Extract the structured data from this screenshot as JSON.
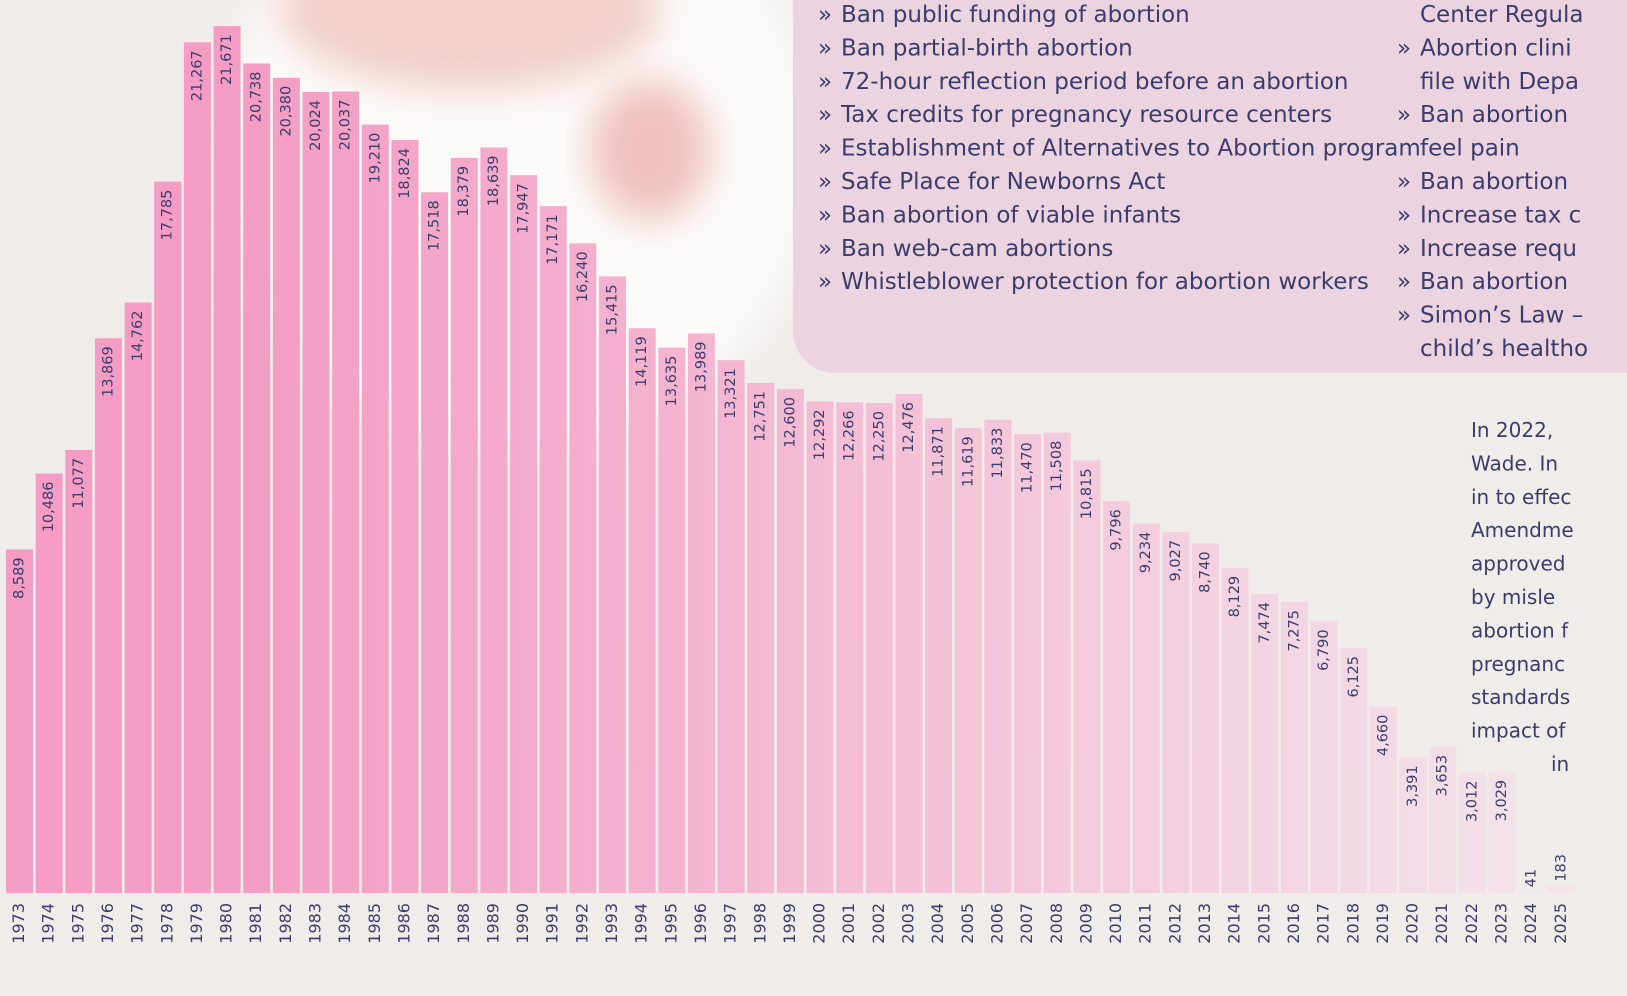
{
  "chart_data": {
    "type": "bar",
    "categories": [
      "1973",
      "1974",
      "1975",
      "1976",
      "1977",
      "1978",
      "1979",
      "1980",
      "1981",
      "1982",
      "1983",
      "1984",
      "1985",
      "1986",
      "1987",
      "1988",
      "1989",
      "1990",
      "1991",
      "1992",
      "1993",
      "1994",
      "1995",
      "1996",
      "1997",
      "1998",
      "1999",
      "2000",
      "2001",
      "2002",
      "2003",
      "2004",
      "2005",
      "2006",
      "2007",
      "2008",
      "2009",
      "2010",
      "2011",
      "2012",
      "2013",
      "2014",
      "2015",
      "2016",
      "2017",
      "2018",
      "2019",
      "2020",
      "2021",
      "2022",
      "2023",
      "2024",
      "2025"
    ],
    "values": [
      8589,
      10486,
      11077,
      13869,
      14762,
      17785,
      21267,
      21671,
      20738,
      20380,
      20024,
      20037,
      19210,
      18824,
      17518,
      18379,
      18639,
      17947,
      17171,
      16240,
      15415,
      14119,
      13635,
      13989,
      13321,
      12751,
      12600,
      12292,
      12266,
      12250,
      12476,
      11871,
      11619,
      11833,
      11470,
      11508,
      10815,
      9796,
      9234,
      9027,
      8740,
      8129,
      7474,
      7275,
      6790,
      6125,
      4660,
      3391,
      3653,
      3012,
      3029,
      41,
      183
    ],
    "value_labels": [
      "8,589",
      "10,486",
      "11,077",
      "13,869",
      "14,762",
      "17,785",
      "21,267",
      "21,671",
      "20,738",
      "20,380",
      "20,024",
      "20,037",
      "19,210",
      "18,824",
      "17,518",
      "18,379",
      "18,639",
      "17,947",
      "17,171",
      "16,240",
      "15,415",
      "14,119",
      "13,635",
      "13,989",
      "13,321",
      "12,751",
      "12,600",
      "12,292",
      "12,266",
      "12,250",
      "12,476",
      "11,871",
      "11,619",
      "11,833",
      "11,470",
      "11,508",
      "10,815",
      "9,796",
      "9,234",
      "9,027",
      "8,740",
      "8,129",
      "7,474",
      "7,275",
      "6,790",
      "6,125",
      "4,660",
      "3,391",
      "3,653",
      "3,012",
      "3,029",
      "41",
      "183"
    ],
    "color": "#f49cc3",
    "ylim": [
      0,
      22000
    ]
  },
  "panel": {
    "bullet": "»",
    "list1": [
      "Ban public funding of abortion",
      "Ban partial-birth abortion",
      "72-hour reflection period before an abortion",
      "Tax credits for pregnancy resource centers",
      "Establishment of Alternatives to Abortion program",
      "Safe Place for Newborns Act",
      "Ban abortion of viable infants",
      "Ban web-cam abortions",
      "Whistleblower protection for abortion workers"
    ],
    "list2": [
      {
        "lines": [
          "Center Regula"
        ],
        "bullet": false
      },
      {
        "lines": [
          "Abortion clini",
          "file with Depa"
        ],
        "bullet": true
      },
      {
        "lines": [
          "Ban abortion",
          "feel pain"
        ],
        "bullet": true
      },
      {
        "lines": [
          "Ban abortion"
        ],
        "bullet": true
      },
      {
        "lines": [
          "Increase tax c"
        ],
        "bullet": true
      },
      {
        "lines": [
          "Increase requ"
        ],
        "bullet": true
      },
      {
        "lines": [
          "Ban abortion"
        ],
        "bullet": true
      },
      {
        "lines": [
          "Simon’s Law –",
          "child’s healtho"
        ],
        "bullet": true
      }
    ]
  },
  "paragraph": [
    "In  2022,",
    "Wade. In",
    "in to effec",
    "Amendme",
    "approved",
    "by   misle",
    "abortion f",
    "pregnanc",
    "standards",
    "impact  of",
    "in"
  ]
}
